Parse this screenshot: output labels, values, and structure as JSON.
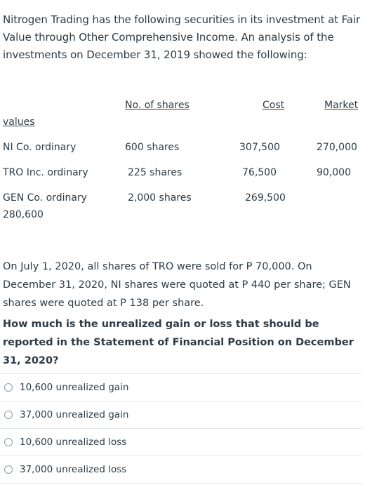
{
  "question": {
    "intro": "Nitrogen Trading has the following securities in its investment at Fair Value through Other Comprehensive Income. An analysis of the investments on December 31, 2019 showed the following:",
    "table": {
      "header_shares": "No. of shares",
      "header_cost": "Cost",
      "header_market": "Market",
      "header_values": "values",
      "rows": [
        {
          "name": "NI Co. ordinary",
          "shares": "600 shares",
          "cost": "307,500",
          "market": "270,000"
        },
        {
          "name": "TRO Inc. ordinary",
          "shares": "225 shares",
          "cost": "76,500",
          "market": "90,000"
        },
        {
          "name": "GEN Co. ordinary",
          "shares": "2,000 shares",
          "cost": "269,500",
          "market": "280,600"
        }
      ]
    },
    "paragraph": "On July 1, 2020, all shares of TRO were sold for P 70,000.  On December 31, 2020, NI shares were quoted at P 440 per share; GEN shares were quoted at P 138 per share.",
    "prompt": "How much is the unrealized gain or loss that should be reported in the Statement of Financial Position on December 31, 2020?"
  },
  "options": [
    {
      "label": "10,600 unrealized gain"
    },
    {
      "label": "37,000 unrealized gain"
    },
    {
      "label": "10,600 unrealized loss"
    },
    {
      "label": "37,000 unrealized loss"
    }
  ]
}
